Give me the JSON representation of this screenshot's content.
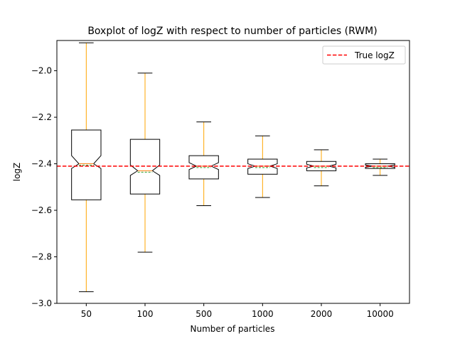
{
  "chart_data": {
    "type": "boxplot",
    "title": "Boxplot of logZ with respect to number of particles (RWM)",
    "xlabel": "Number of particles",
    "ylabel": "logZ",
    "categories": [
      "50",
      "100",
      "500",
      "1000",
      "2000",
      "10000"
    ],
    "ylim": [
      -3.0,
      -1.87
    ],
    "yticks": [
      -3.0,
      -2.8,
      -2.6,
      -2.4,
      -2.2,
      -2.0
    ],
    "ytick_labels": [
      "−3.0",
      "−2.8",
      "−2.6",
      "−2.4",
      "−2.2",
      "−2.0"
    ],
    "notched": true,
    "grid": false,
    "boxes": [
      {
        "label": "50",
        "whisker_low": -2.95,
        "q1": -2.555,
        "median": -2.4,
        "q3": -2.255,
        "whisker_high": -1.88,
        "notch_low": -2.42,
        "notch_high": -2.365
      },
      {
        "label": "100",
        "whisker_low": -2.78,
        "q1": -2.53,
        "median": -2.43,
        "q3": -2.295,
        "whisker_high": -2.01,
        "notch_low": -2.45,
        "notch_high": -2.405
      },
      {
        "label": "500",
        "whisker_low": -2.58,
        "q1": -2.465,
        "median": -2.41,
        "q3": -2.365,
        "whisker_high": -2.22,
        "notch_low": -2.425,
        "notch_high": -2.395
      },
      {
        "label": "1000",
        "whisker_low": -2.545,
        "q1": -2.445,
        "median": -2.41,
        "q3": -2.38,
        "whisker_high": -2.28,
        "notch_low": -2.42,
        "notch_high": -2.4
      },
      {
        "label": "2000",
        "whisker_low": -2.495,
        "q1": -2.43,
        "median": -2.41,
        "q3": -2.39,
        "whisker_high": -2.34,
        "notch_low": -2.418,
        "notch_high": -2.402
      },
      {
        "label": "10000",
        "whisker_low": -2.45,
        "q1": -2.42,
        "median": -2.41,
        "q3": -2.4,
        "whisker_high": -2.38,
        "notch_low": -2.415,
        "notch_high": -2.405
      }
    ],
    "reference_line": {
      "label": "True logZ",
      "value": -2.41,
      "color": "#ff0000",
      "style": "dashed"
    },
    "legend": {
      "position": "top-right",
      "entries": [
        "True logZ"
      ]
    },
    "colors": {
      "box": "#000000",
      "whisker": "#ffa500",
      "median": "#ff7f0e",
      "mean": "#2ca02c",
      "reference": "#ff0000"
    }
  }
}
